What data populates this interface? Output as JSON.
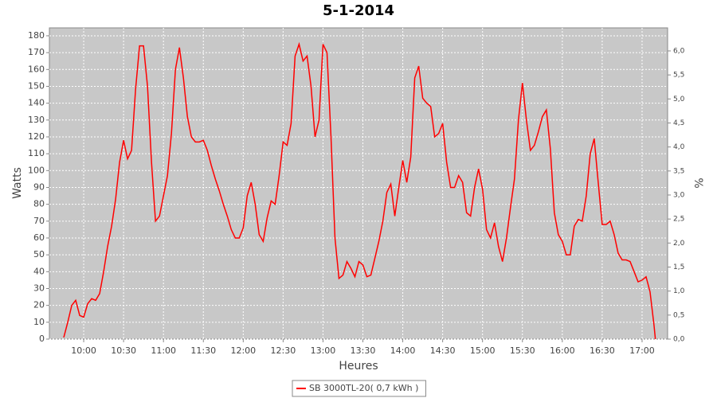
{
  "chart_data": {
    "type": "line",
    "title": "5-1-2014",
    "xlabel": "Heures",
    "ylabel": "Watts",
    "y2label": "%",
    "x": [
      585,
      588,
      591,
      594,
      597,
      600,
      603,
      606,
      609,
      612,
      615,
      618,
      621,
      624,
      627,
      630,
      633,
      636,
      639,
      642,
      645,
      648,
      651,
      654,
      657,
      660,
      663,
      666,
      669,
      672,
      675,
      678,
      681,
      684,
      687,
      690,
      693,
      696,
      699,
      702,
      705,
      708,
      711,
      714,
      717,
      720,
      723,
      726,
      729,
      732,
      735,
      738,
      741,
      744,
      747,
      750,
      753,
      756,
      759,
      762,
      765,
      768,
      771,
      774,
      777,
      780,
      783,
      786,
      789,
      792,
      795,
      798,
      801,
      804,
      807,
      810,
      813,
      816,
      819,
      822,
      825,
      828,
      831,
      834,
      837,
      840,
      843,
      846,
      849,
      852,
      855,
      858,
      861,
      864,
      867,
      870,
      873,
      876,
      879,
      882,
      885,
      888,
      891,
      894,
      897,
      900,
      903,
      906,
      909,
      912,
      915,
      918,
      921,
      924,
      927,
      930,
      933,
      936,
      939,
      942,
      945,
      948,
      951,
      954,
      957,
      960,
      963,
      966,
      969,
      972,
      975,
      978,
      981,
      984,
      987,
      990,
      993,
      996,
      999,
      1002,
      1005,
      1008,
      1011,
      1014,
      1017,
      1020,
      1023,
      1026,
      1029,
      1030
    ],
    "series": [
      {
        "name": "SB 3000TL-20( 0,7 kWh )",
        "color": "#ff0000",
        "values": [
          1,
          10,
          20,
          23,
          14,
          13,
          21,
          24,
          23,
          27,
          40,
          55,
          67,
          83,
          105,
          118,
          107,
          112,
          148,
          174,
          174,
          150,
          105,
          70,
          73,
          85,
          97,
          122,
          160,
          173,
          155,
          132,
          120,
          117,
          117,
          118,
          112,
          103,
          95,
          88,
          80,
          73,
          65,
          60,
          60,
          66,
          85,
          93,
          80,
          62,
          58,
          72,
          82,
          80,
          97,
          117,
          115,
          128,
          168,
          175,
          165,
          168,
          150,
          120,
          130,
          175,
          170,
          120,
          60,
          36,
          38,
          46,
          42,
          37,
          46,
          44,
          37,
          38,
          48,
          58,
          70,
          87,
          92,
          73,
          90,
          106,
          93,
          108,
          155,
          162,
          143,
          140,
          138,
          120,
          122,
          128,
          105,
          90,
          90,
          97,
          93,
          75,
          73,
          90,
          101,
          89,
          65,
          60,
          69,
          55,
          46,
          60,
          78,
          95,
          130,
          152,
          130,
          112,
          115,
          123,
          132,
          136,
          113,
          75,
          62,
          58,
          50,
          50,
          67,
          71,
          70,
          85,
          110,
          119,
          93,
          68,
          68,
          70,
          62,
          51,
          47,
          47,
          46,
          40,
          34,
          35,
          37,
          28,
          8,
          0
        ]
      }
    ],
    "xlim": [
      574.2,
      1039.2
    ],
    "xticks": [
      {
        "value": 600,
        "label": "10:00"
      },
      {
        "value": 630,
        "label": "10:30"
      },
      {
        "value": 660,
        "label": "11:00"
      },
      {
        "value": 690,
        "label": "11:30"
      },
      {
        "value": 720,
        "label": "12:00"
      },
      {
        "value": 750,
        "label": "12:30"
      },
      {
        "value": 780,
        "label": "13:00"
      },
      {
        "value": 810,
        "label": "13:30"
      },
      {
        "value": 840,
        "label": "14:00"
      },
      {
        "value": 870,
        "label": "14:30"
      },
      {
        "value": 900,
        "label": "15:00"
      },
      {
        "value": 930,
        "label": "15:30"
      },
      {
        "value": 960,
        "label": "16:00"
      },
      {
        "value": 990,
        "label": "16:30"
      },
      {
        "value": 1020,
        "label": "17:00"
      }
    ],
    "ylim": [
      0,
      184.7
    ],
    "yticks": [
      0,
      10,
      20,
      30,
      40,
      50,
      60,
      70,
      80,
      90,
      100,
      110,
      120,
      130,
      140,
      150,
      160,
      170,
      180
    ],
    "y2lim": [
      0,
      6.48
    ],
    "y2ticks": [
      {
        "value": 0,
        "label": "0,0"
      },
      {
        "value": 0.5,
        "label": "0,5"
      },
      {
        "value": 1,
        "label": "1,0"
      },
      {
        "value": 1.5,
        "label": "1,5"
      },
      {
        "value": 2,
        "label": "2,0"
      },
      {
        "value": 2.5,
        "label": "2,5"
      },
      {
        "value": 3,
        "label": "3,0"
      },
      {
        "value": 3.5,
        "label": "3,5"
      },
      {
        "value": 4,
        "label": "4,0"
      },
      {
        "value": 4.5,
        "label": "4,5"
      },
      {
        "value": 5,
        "label": "5,0"
      },
      {
        "value": 5.5,
        "label": "5,5"
      },
      {
        "value": 6,
        "label": "6,0"
      }
    ],
    "grid": true,
    "legend": "bottom"
  }
}
